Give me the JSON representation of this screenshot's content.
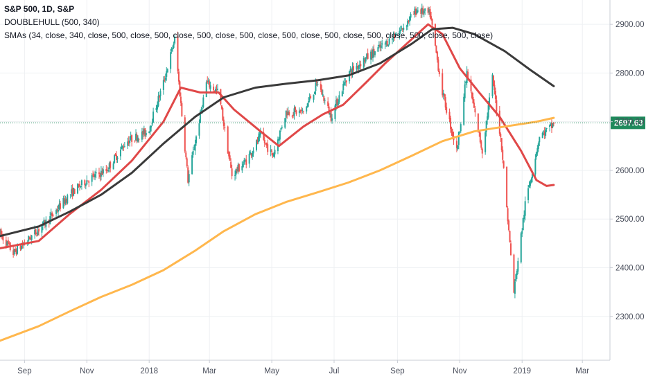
{
  "legend": {
    "title": "S&P 500, 1D, S&P",
    "indicator1": "DOUBLEHULL (500, 340)",
    "indicator2": "SMAs (34, close, 340, close, 500, close, 500, close, 500, close, 500, close, 500, close, 500, close, 500, close, 500, close, 500, close)"
  },
  "colors": {
    "up": "#26a69a",
    "down": "#ef5350",
    "sma34": "#e04848",
    "sma340": "#3a3a3a",
    "sma500": "#ffb74d",
    "last_price": "#1f8a5c",
    "grid": "#eef0f3"
  },
  "chart_data": {
    "type": "candlestick",
    "symbol": "S&P 500",
    "interval": "1D",
    "ylim": [
      2210,
      2950
    ],
    "y_ticks": [
      2300,
      2400,
      2500,
      2600,
      2700,
      2800,
      2900
    ],
    "y_tick_labels": [
      "2300.00",
      "2400.00",
      "2500.00",
      "2600.00",
      "2700.00",
      "2800.00",
      "2900.00"
    ],
    "x_ticks": [
      "Sep",
      "Nov",
      "2018",
      "Mar",
      "May",
      "Jul",
      "Sep",
      "Nov",
      "2019",
      "Mar"
    ],
    "x_tick_dates": [
      "2017-09-01",
      "2017-11-01",
      "2018-01-01",
      "2018-03-01",
      "2018-05-01",
      "2018-07-01",
      "2018-09-01",
      "2018-11-01",
      "2019-01-01",
      "2019-03-01"
    ],
    "x_range": [
      "2017-08-08",
      "2019-03-28"
    ],
    "last_price": 2697.63,
    "last_price_label": "2697.63",
    "price_path": [
      [
        "2017-08-08",
        2470
      ],
      [
        "2017-08-21",
        2430
      ],
      [
        "2017-09-01",
        2450
      ],
      [
        "2017-09-25",
        2500
      ],
      [
        "2017-10-15",
        2550
      ],
      [
        "2017-11-01",
        2580
      ],
      [
        "2017-11-20",
        2600
      ],
      [
        "2017-12-10",
        2660
      ],
      [
        "2017-12-31",
        2680
      ],
      [
        "2018-01-15",
        2780
      ],
      [
        "2018-01-26",
        2870
      ],
      [
        "2018-02-08",
        2580
      ],
      [
        "2018-02-26",
        2780
      ],
      [
        "2018-03-10",
        2760
      ],
      [
        "2018-03-23",
        2590
      ],
      [
        "2018-04-06",
        2620
      ],
      [
        "2018-04-20",
        2670
      ],
      [
        "2018-05-02",
        2630
      ],
      [
        "2018-05-15",
        2720
      ],
      [
        "2018-06-01",
        2720
      ],
      [
        "2018-06-15",
        2780
      ],
      [
        "2018-06-28",
        2710
      ],
      [
        "2018-07-15",
        2800
      ],
      [
        "2018-08-01",
        2830
      ],
      [
        "2018-08-20",
        2860
      ],
      [
        "2018-09-05",
        2890
      ],
      [
        "2018-09-20",
        2930
      ],
      [
        "2018-10-03",
        2920
      ],
      [
        "2018-10-15",
        2760
      ],
      [
        "2018-10-29",
        2640
      ],
      [
        "2018-11-08",
        2800
      ],
      [
        "2018-11-23",
        2640
      ],
      [
        "2018-12-03",
        2790
      ],
      [
        "2018-12-12",
        2650
      ],
      [
        "2018-12-24",
        2350
      ],
      [
        "2019-01-04",
        2530
      ],
      [
        "2019-01-18",
        2670
      ],
      [
        "2019-01-30",
        2690
      ],
      [
        "2019-02-01",
        2698
      ]
    ],
    "series": [
      {
        "name": "SMA 34",
        "values": [
          [
            "2017-08-08",
            2440
          ],
          [
            "2017-09-15",
            2455
          ],
          [
            "2017-10-15",
            2510
          ],
          [
            "2017-11-15",
            2560
          ],
          [
            "2017-12-15",
            2620
          ],
          [
            "2018-01-15",
            2700
          ],
          [
            "2018-02-01",
            2770
          ],
          [
            "2018-02-20",
            2760
          ],
          [
            "2018-03-10",
            2760
          ],
          [
            "2018-03-25",
            2725
          ],
          [
            "2018-04-20",
            2680
          ],
          [
            "2018-05-08",
            2650
          ],
          [
            "2018-06-01",
            2690
          ],
          [
            "2018-06-20",
            2715
          ],
          [
            "2018-07-10",
            2735
          ],
          [
            "2018-08-01",
            2780
          ],
          [
            "2018-08-20",
            2820
          ],
          [
            "2018-09-10",
            2860
          ],
          [
            "2018-10-01",
            2900
          ],
          [
            "2018-10-15",
            2880
          ],
          [
            "2018-11-01",
            2810
          ],
          [
            "2018-11-20",
            2760
          ],
          [
            "2018-12-10",
            2710
          ],
          [
            "2018-12-31",
            2640
          ],
          [
            "2019-01-15",
            2580
          ],
          [
            "2019-01-25",
            2568
          ],
          [
            "2019-02-01",
            2570
          ]
        ]
      },
      {
        "name": "DOUBLEHULL / SMA 340",
        "values": [
          [
            "2017-08-08",
            2465
          ],
          [
            "2017-09-15",
            2485
          ],
          [
            "2017-10-15",
            2515
          ],
          [
            "2017-11-15",
            2550
          ],
          [
            "2017-12-15",
            2595
          ],
          [
            "2018-01-15",
            2655
          ],
          [
            "2018-02-15",
            2710
          ],
          [
            "2018-03-15",
            2750
          ],
          [
            "2018-04-15",
            2770
          ],
          [
            "2018-05-15",
            2778
          ],
          [
            "2018-06-15",
            2785
          ],
          [
            "2018-07-15",
            2795
          ],
          [
            "2018-08-15",
            2820
          ],
          [
            "2018-09-15",
            2860
          ],
          [
            "2018-10-05",
            2890
          ],
          [
            "2018-10-25",
            2893
          ],
          [
            "2018-11-15",
            2880
          ],
          [
            "2018-12-15",
            2845
          ],
          [
            "2019-01-10",
            2805
          ],
          [
            "2019-02-01",
            2773
          ]
        ]
      },
      {
        "name": "SMA 500",
        "values": [
          [
            "2017-08-08",
            2250
          ],
          [
            "2017-09-15",
            2280
          ],
          [
            "2017-10-15",
            2310
          ],
          [
            "2017-11-15",
            2340
          ],
          [
            "2017-12-15",
            2365
          ],
          [
            "2018-01-15",
            2395
          ],
          [
            "2018-02-15",
            2435
          ],
          [
            "2018-03-15",
            2475
          ],
          [
            "2018-04-15",
            2510
          ],
          [
            "2018-05-15",
            2535
          ],
          [
            "2018-06-15",
            2555
          ],
          [
            "2018-07-15",
            2575
          ],
          [
            "2018-08-15",
            2600
          ],
          [
            "2018-09-15",
            2630
          ],
          [
            "2018-10-15",
            2660
          ],
          [
            "2018-11-15",
            2680
          ],
          [
            "2018-12-15",
            2690
          ],
          [
            "2019-01-15",
            2700
          ],
          [
            "2019-02-01",
            2708
          ]
        ]
      }
    ],
    "grid": true,
    "legend_position": "top-left"
  }
}
